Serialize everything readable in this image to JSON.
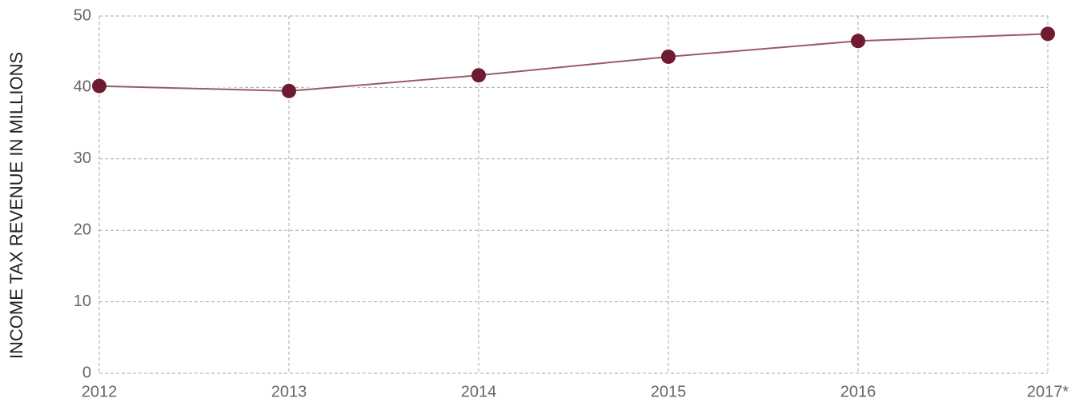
{
  "chart_data": {
    "type": "line",
    "y_label": "INCOME TAX REVENUE IN MILLIONS",
    "categories": [
      "2012",
      "2013",
      "2014",
      "2015",
      "2016",
      "2017*"
    ],
    "series": [
      {
        "name": "Income tax revenue",
        "color": "#6e1a30",
        "values": [
          40.2,
          39.5,
          41.7,
          44.3,
          46.5,
          47.5
        ]
      }
    ],
    "ylim": [
      0,
      50
    ],
    "yticks": [
      0,
      10,
      20,
      30,
      40,
      50
    ],
    "grid": true
  }
}
